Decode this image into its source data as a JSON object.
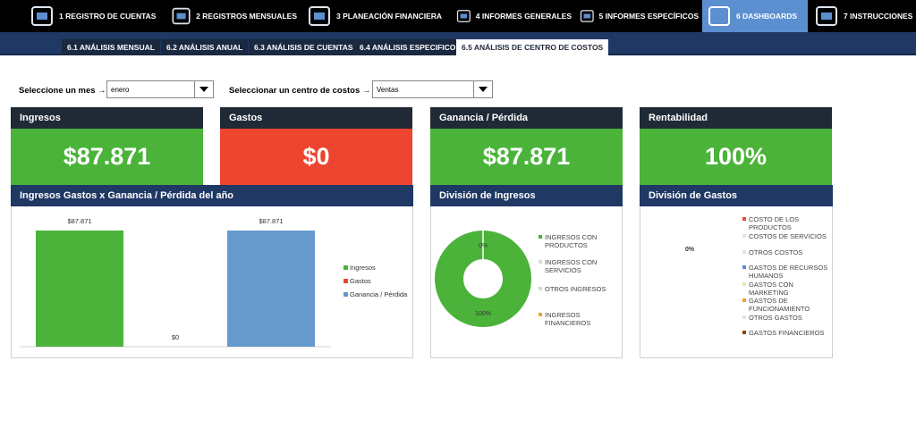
{
  "nav": {
    "items": [
      "1 REGISTRO DE CUENTAS",
      "2 REGISTROS MENSUALES",
      "3 PLANEACIÓN FINANCIERA",
      "4 INFORMES GENERALES",
      "5 INFORMES ESPECÍFICOS",
      "6 DASHBOARDS",
      "7 INSTRUCCIONES"
    ],
    "active": 5
  },
  "tabs": {
    "items": [
      "6.1 ANÁLISIS MENSUAL",
      "6.2 ANÁLISIS ANUAL",
      "6.3 ANÁLISIS DE CUENTAS",
      "6.4 ANÁLISIS ESPECIFICO",
      "6.5 ANÁLISIS DE CENTRO DE COSTOS"
    ],
    "active": 4
  },
  "filters": [
    {
      "label": "Seleccione un mes →",
      "value": "enero"
    },
    {
      "label": "Seleccionar un centro de costos →",
      "value": "Ventas"
    }
  ],
  "kpis": [
    {
      "title": "Ingresos",
      "value": "$87.871",
      "color": "#4bb33a"
    },
    {
      "title": "Gastos",
      "value": "$0",
      "color": "#ee4530"
    },
    {
      "title": "Ganancia / Pérdida",
      "value": "$87.871",
      "color": "#4bb33a"
    },
    {
      "title": "Rentabilidad",
      "value": "100%",
      "color": "#4bb33a"
    }
  ],
  "bar_chart": {
    "title": "Ingresos Gastos x Ganancia / Pérdida del año",
    "series": [
      {
        "name": "Ingresos",
        "color": "#4bb33a",
        "value": 87871,
        "value_label": "$87.871"
      },
      {
        "name": "Gastos",
        "color": "#ee4530",
        "value": 0,
        "value_label": "$0"
      },
      {
        "name": "Ganancia / Pérdida",
        "color": "#6699cc",
        "value": 87871,
        "value_label": "$87.871"
      }
    ]
  },
  "income_chart": {
    "title": "División de Ingresos",
    "series": [
      {
        "name": "INGRESOS CON PRODUCTOS",
        "color": "#4bb33a",
        "value": 100,
        "value_label": "100%"
      },
      {
        "name": "INGRESOS CON SERVICIOS",
        "color": "#d9d9d9",
        "value": 0,
        "value_label": "0%"
      },
      {
        "name": "OTROS INGRESOS",
        "color": "#d9d9d9",
        "value": 0
      },
      {
        "name": "INGRESOS FINANCIEROS",
        "color": "#f0a030",
        "value": 0
      }
    ]
  },
  "expense_chart": {
    "title": "División de Gastos",
    "value_label": "0%",
    "series": [
      {
        "name": "COSTO DE LOS PRODUCTOS",
        "color": "#e8483b",
        "value": 0
      },
      {
        "name": "COSTOS DE SERVICIOS",
        "color": "#e3e3ef",
        "value": 0
      },
      {
        "name": "OTROS COSTOS",
        "color": "#e3e3ef",
        "value": 0
      },
      {
        "name": "GASTOS DE RECURSOS HUMANOS",
        "color": "#5b8fd0",
        "value": 0
      },
      {
        "name": "GASTOS CON MARKETING",
        "color": "#e8e8a8",
        "value": 0
      },
      {
        "name": "GASTOS DE FUNCIONAMIENTO",
        "color": "#f0a030",
        "value": 0
      },
      {
        "name": "OTROS GASTOS",
        "color": "#e3e3ef",
        "value": 0
      },
      {
        "name": "GASTOS FINANCIEROS",
        "color": "#8b4513",
        "value": 0
      }
    ]
  }
}
